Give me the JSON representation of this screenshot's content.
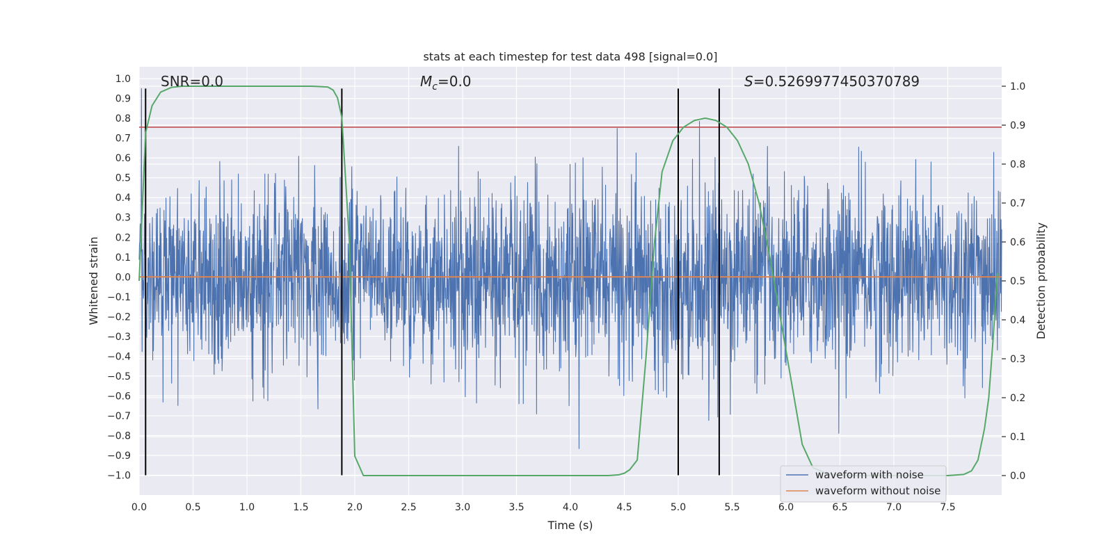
{
  "chart_data": {
    "type": "line",
    "title": "stats at each timestep for test data 498 [signal=0.0]",
    "xlabel": "Time (s)",
    "ylabel_left": "Whitened strain",
    "ylabel_right": "Detection probability",
    "xlim": [
      0.0,
      8.0
    ],
    "ylim_left": [
      -1.1,
      1.06
    ],
    "ylim_right": [
      -0.05,
      1.05
    ],
    "x_ticks": [
      0.0,
      0.5,
      1.0,
      1.5,
      2.0,
      2.5,
      3.0,
      3.5,
      4.0,
      4.5,
      5.0,
      5.5,
      6.0,
      6.5,
      7.0,
      7.5
    ],
    "x_tick_labels": [
      "0.0",
      "0.5",
      "1.0",
      "1.5",
      "2.0",
      "2.5",
      "3.0",
      "3.5",
      "4.0",
      "4.5",
      "5.0",
      "5.5",
      "6.0",
      "6.5",
      "7.0",
      "7.5"
    ],
    "y_left_ticks": [
      -1.0,
      -0.9,
      -0.8,
      -0.7,
      -0.6,
      -0.5,
      -0.4,
      -0.3,
      -0.2,
      -0.1,
      0.0,
      0.1,
      0.2,
      0.3,
      0.4,
      0.5,
      0.6,
      0.7,
      0.8,
      0.9,
      1.0
    ],
    "y_left_tick_labels": [
      "−1.0",
      "−0.9",
      "−0.8",
      "−0.7",
      "−0.6",
      "−0.5",
      "−0.4",
      "−0.3",
      "−0.2",
      "−0.1",
      "0.0",
      "0.1",
      "0.2",
      "0.3",
      "0.4",
      "0.5",
      "0.6",
      "0.7",
      "0.8",
      "0.9",
      "1.0"
    ],
    "y_right_ticks": [
      0.0,
      0.1,
      0.2,
      0.3,
      0.4,
      0.5,
      0.6,
      0.7,
      0.8,
      0.9,
      1.0
    ],
    "y_right_tick_labels": [
      "0.0",
      "0.1",
      "0.2",
      "0.3",
      "0.4",
      "0.5",
      "0.6",
      "0.7",
      "0.8",
      "0.9",
      "1.0"
    ],
    "annotations": {
      "snr": "SNR=0.0",
      "mc_symbol": "M",
      "mc_sub": "c",
      "mc_value": "=0.0",
      "s_symbol": "S",
      "s_value": "=0.5269977450370789"
    },
    "threshold": {
      "y": 0.755,
      "color": "#c44e52"
    },
    "vertical_markers": [
      {
        "x": 0.06,
        "y_from": -1.0,
        "y_to": 0.95
      },
      {
        "x": 1.88,
        "y_from": -1.0,
        "y_to": 0.95
      },
      {
        "x": 5.0,
        "y_from": -1.0,
        "y_to": 0.95
      },
      {
        "x": 5.38,
        "y_from": -1.0,
        "y_to": 0.95
      }
    ],
    "series": [
      {
        "name": "waveform with noise",
        "axis": "left",
        "color": "#4c72b0",
        "kind": "noise",
        "approx_range": [
          -0.97,
          0.95
        ],
        "core_amplitude": 0.32
      },
      {
        "name": "waveform without noise",
        "axis": "left",
        "color": "#dd8452",
        "x": [
          0.0,
          8.0
        ],
        "values": [
          0.0,
          0.0
        ]
      },
      {
        "name": "detection probability",
        "axis": "right",
        "color": "#55a868",
        "x": [
          0.0,
          0.06,
          0.12,
          0.2,
          0.3,
          0.4,
          0.6,
          0.8,
          1.0,
          1.2,
          1.4,
          1.6,
          1.75,
          1.8,
          1.84,
          1.88,
          1.95,
          2.0,
          2.08,
          2.2,
          3.0,
          4.0,
          4.35,
          4.45,
          4.5,
          4.55,
          4.62,
          4.7,
          4.78,
          4.85,
          4.95,
          5.05,
          5.15,
          5.25,
          5.35,
          5.45,
          5.55,
          5.65,
          5.75,
          5.85,
          5.95,
          6.05,
          6.15,
          6.25,
          6.4,
          6.6,
          7.0,
          7.5,
          7.65,
          7.72,
          7.78,
          7.84,
          7.88,
          7.92,
          7.96
        ],
        "values": [
          0.5,
          0.88,
          0.95,
          0.985,
          0.997,
          1.0,
          1.0,
          1.0,
          1.0,
          1.0,
          1.0,
          1.0,
          0.998,
          0.99,
          0.97,
          0.92,
          0.6,
          0.05,
          0.0,
          0.0,
          0.0,
          0.0,
          0.0,
          0.002,
          0.006,
          0.015,
          0.04,
          0.3,
          0.6,
          0.78,
          0.86,
          0.895,
          0.912,
          0.918,
          0.912,
          0.895,
          0.86,
          0.8,
          0.7,
          0.56,
          0.4,
          0.24,
          0.08,
          0.02,
          0.003,
          0.0,
          0.0,
          0.0,
          0.003,
          0.012,
          0.04,
          0.12,
          0.2,
          0.35,
          0.52
        ]
      }
    ],
    "legend": {
      "placement": "bottom-right",
      "entries": [
        "waveform with noise",
        "waveform without noise"
      ]
    },
    "grid": true
  }
}
